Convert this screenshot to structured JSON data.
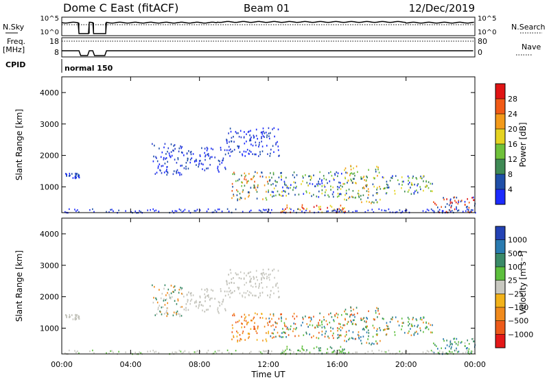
{
  "header": {
    "station": "Dome C East (fitACF)",
    "beam": "Beam 01",
    "date": "12/Dec/2019"
  },
  "top_panels": {
    "nsky_label": "N.Sky",
    "nsky_ticks": [
      "10^5",
      "10^0"
    ],
    "nsearch_label": "N.Search",
    "freq_label": "Freq.",
    "freq_unit": "[MHz]",
    "freq_ticks": [
      "18",
      "8"
    ],
    "nave_label": "Nave",
    "nave_ticks": [
      "80",
      "0"
    ],
    "cpid_label": "CPID",
    "cpid_value": "normal 150",
    "nsearch_ticks": [
      "10^5",
      "10^0"
    ],
    "data_gap_hours": [
      [
        1.0,
        1.6
      ],
      [
        1.85,
        2.55
      ]
    ]
  },
  "axes": {
    "xlabel": "Time UT",
    "xticks": [
      "00:00",
      "04:00",
      "08:00",
      "12:00",
      "16:00",
      "20:00",
      "00:00"
    ],
    "xrange_hours": [
      0,
      24
    ],
    "ylabel_power": "Slant Range [km]",
    "ylabel_velocity": "Slant Range [km]",
    "yticks": [
      "1000",
      "2000",
      "3000",
      "4000"
    ],
    "yrange_km": [
      180,
      4500
    ]
  },
  "power_scale": {
    "label": "Power [dB]",
    "ticks": [
      "4",
      "8",
      "12",
      "16",
      "20",
      "24",
      "28"
    ],
    "colors": [
      "#1c2bff",
      "#1f4fa8",
      "#3f8a55",
      "#6fc13a",
      "#e5d321",
      "#f39a1a",
      "#f15a16",
      "#e01414"
    ]
  },
  "velocity_scale": {
    "label": "Velocity [m s⁻¹]",
    "ticks": [
      "1000",
      "500",
      "100",
      "25",
      "−25",
      "−100",
      "−500",
      "−1000"
    ],
    "colors": [
      "#2342b4",
      "#2a7bb0",
      "#3a8a68",
      "#5dbf3d",
      "#c8c8c0",
      "#f2b21a",
      "#f08a1c",
      "#ed5a19",
      "#e41818"
    ]
  },
  "chart_data": {
    "type": "heatmap",
    "title": "",
    "x_unit": "hours UT",
    "y_unit": "km",
    "echo_regions": [
      {
        "t0": 0.2,
        "t1": 1.0,
        "r0": 1300,
        "r1": 1450,
        "power": "blue",
        "velocity": "gray"
      },
      {
        "t0": 5.2,
        "t1": 7.0,
        "r0": 1400,
        "r1": 2400,
        "power": "blue",
        "velocity": "gray-orange"
      },
      {
        "t0": 7.0,
        "t1": 9.5,
        "r0": 1500,
        "r1": 2300,
        "power": "blue",
        "velocity": "gray"
      },
      {
        "t0": 9.5,
        "t1": 12.7,
        "r0": 2000,
        "r1": 2900,
        "power": "blue",
        "velocity": "gray"
      },
      {
        "t0": 9.8,
        "t1": 12.0,
        "r0": 600,
        "r1": 1500,
        "power": "orange-green",
        "velocity": "orange"
      },
      {
        "t0": 12.0,
        "t1": 16.3,
        "r0": 700,
        "r1": 1500,
        "power": "green-yellow",
        "velocity": "orange-green"
      },
      {
        "t0": 16.3,
        "t1": 18.5,
        "r0": 500,
        "r1": 1700,
        "power": "yellow-orange",
        "velocity": "orange-green"
      },
      {
        "t0": 18.5,
        "t1": 21.5,
        "r0": 800,
        "r1": 1400,
        "power": "blue-green",
        "velocity": "green-orange"
      },
      {
        "t0": 12.5,
        "t1": 16.5,
        "r0": 200,
        "r1": 450,
        "power": "red-orange",
        "velocity": "green"
      },
      {
        "t0": 21.5,
        "t1": 24.0,
        "r0": 200,
        "r1": 700,
        "power": "red",
        "velocity": "green-gray"
      }
    ]
  }
}
